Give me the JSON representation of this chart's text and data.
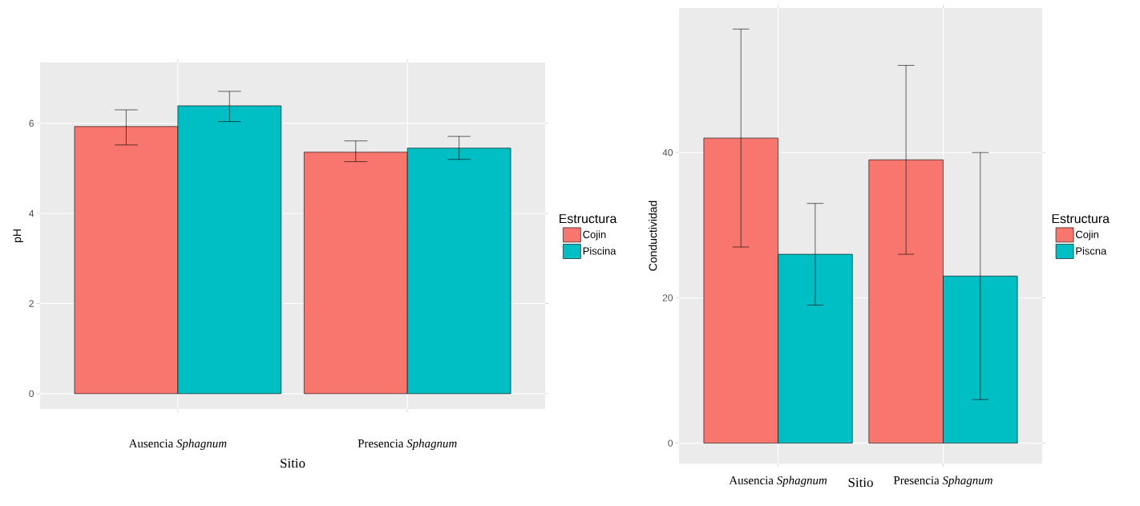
{
  "chart_data": [
    {
      "type": "bar",
      "xlabel": "Sitio",
      "ylabel": "pH",
      "legend_title": "Estructura",
      "categories": [
        "Ausencia *Sphagnum*",
        "Presencia *Sphagnum*"
      ],
      "series": [
        {
          "name": "Cojin",
          "color": "#f8766d",
          "values": [
            5.93,
            5.36
          ],
          "errors": [
            [
              5.52,
              6.3
            ],
            [
              5.15,
              5.61
            ]
          ]
        },
        {
          "name": "Piscina",
          "color": "#00bfc4",
          "values": [
            6.39,
            5.45
          ],
          "errors": [
            [
              6.04,
              6.71
            ],
            [
              5.2,
              5.71
            ]
          ]
        }
      ],
      "ylim": [
        -0.34,
        7.35
      ],
      "yticks": [
        0,
        2,
        4,
        6
      ],
      "grid": true,
      "legend": "right"
    },
    {
      "type": "bar",
      "xlabel": "Sitio",
      "ylabel": "Conductividad",
      "legend_title": "Estructura",
      "categories": [
        "Ausencia *Sphagnum*",
        "Presencia *Sphagnum*"
      ],
      "series": [
        {
          "name": "Cojin",
          "color": "#f8766d",
          "values": [
            42,
            39
          ],
          "errors": [
            [
              27,
              57
            ],
            [
              26,
              52
            ]
          ]
        },
        {
          "name": "Piscna",
          "color": "#00bfc4",
          "values": [
            26,
            23
          ],
          "errors": [
            [
              19,
              33
            ],
            [
              6,
              40
            ]
          ]
        }
      ],
      "ylim": [
        -2.8,
        59.9
      ],
      "yticks": [
        0,
        20,
        40
      ],
      "grid": true,
      "legend": "right"
    }
  ]
}
